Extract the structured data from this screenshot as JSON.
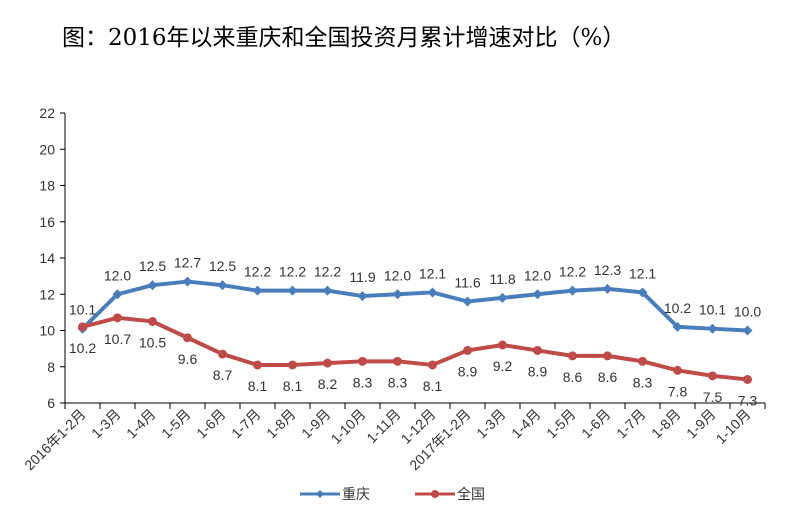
{
  "chart_data": {
    "type": "line",
    "title": "图：2016年以来重庆和全国投资月累计增速对比（%）",
    "categories": [
      "2016年1-2月",
      "1-3月",
      "1-4月",
      "1-5月",
      "1-6月",
      "1-7月",
      "1-8月",
      "1-9月",
      "1-10月",
      "1-11月",
      "1-12月",
      "2017年1-2月",
      "1-3月",
      "1-4月",
      "1-5月",
      "1-6月",
      "1-7月",
      "1-8月",
      "1-9月",
      "1-10月"
    ],
    "series": [
      {
        "name": "重庆",
        "color": "#4a7ebb",
        "marker": "diamond",
        "values": [
          10.1,
          12.0,
          12.5,
          12.7,
          12.5,
          12.2,
          12.2,
          12.2,
          11.9,
          12.0,
          12.1,
          11.6,
          11.8,
          12.0,
          12.2,
          12.3,
          12.1,
          10.2,
          10.1,
          10.0
        ]
      },
      {
        "name": "全国",
        "color": "#be4b48",
        "marker": "circle",
        "values": [
          10.2,
          10.7,
          10.5,
          9.6,
          8.7,
          8.1,
          8.1,
          8.2,
          8.3,
          8.3,
          8.1,
          8.9,
          9.2,
          8.9,
          8.6,
          8.6,
          8.3,
          7.8,
          7.5,
          7.3
        ]
      }
    ],
    "ylim": [
      6,
      22
    ],
    "yticks": [
      6,
      8,
      10,
      12,
      14,
      16,
      18,
      20,
      22
    ],
    "xlabel": "",
    "ylabel": "",
    "grid": false,
    "legend": "bottom"
  }
}
